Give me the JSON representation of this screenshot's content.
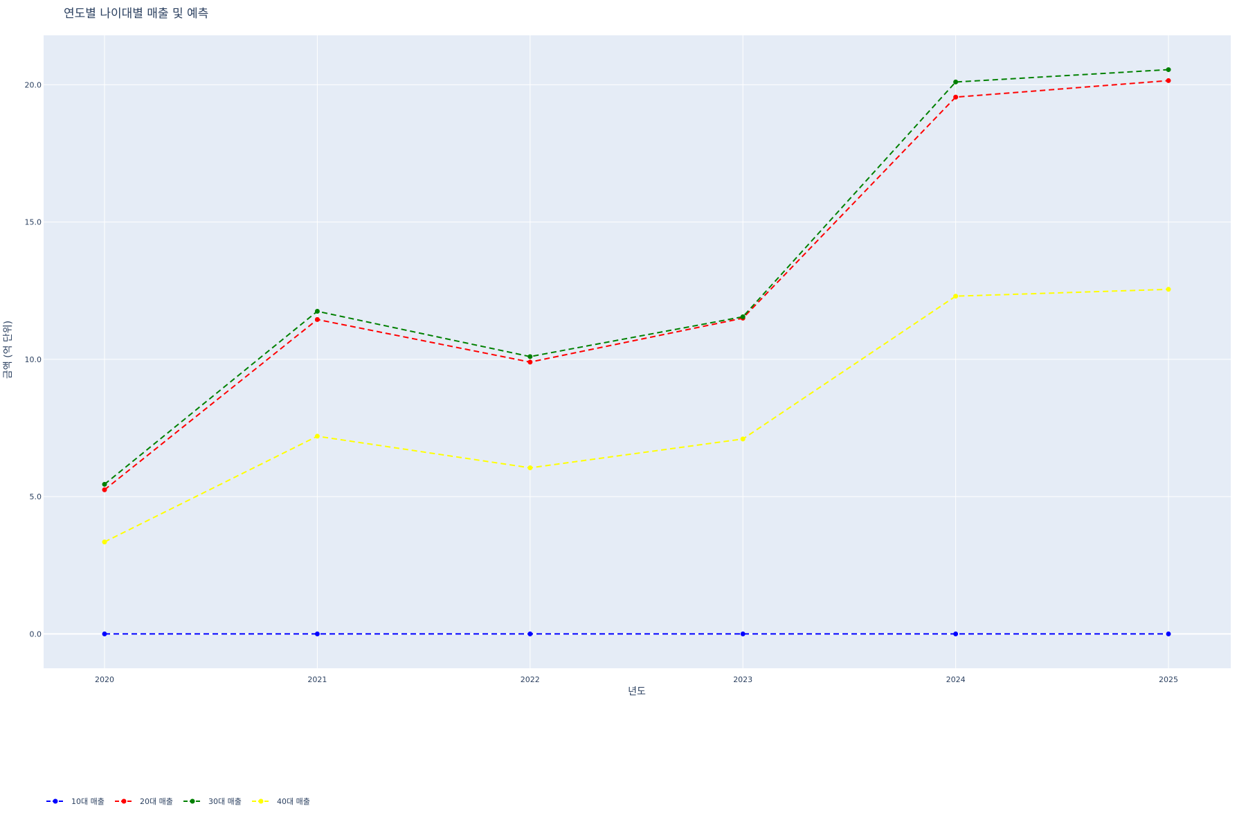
{
  "chart_data": {
    "type": "line",
    "title": "연도별 나이대별 매출 및 예측",
    "xlabel": "년도",
    "ylabel": "금액 (억 단위)",
    "x": [
      2020,
      2021,
      2022,
      2023,
      2024,
      2025
    ],
    "x_tick_labels": [
      "2020",
      "2021",
      "2022",
      "2023",
      "2024",
      "2025"
    ],
    "ylim": [
      -1.25,
      21.8
    ],
    "y_ticks": [
      0,
      5,
      10,
      15,
      20
    ],
    "y_tick_labels": [
      "0.0",
      "5.0",
      "10.0",
      "15.0",
      "20.0"
    ],
    "grid": true,
    "legend_placement": "bottom-left horizontal",
    "line_style": "dashed with markers",
    "background_color": "#e5ecf6",
    "grid_color": "#ffffff",
    "text_color": "#2a3f5f",
    "series": [
      {
        "name": "10대 매출",
        "color": "#0000ff",
        "values": [
          0,
          0,
          0,
          0,
          0,
          0
        ]
      },
      {
        "name": "20대 매출",
        "color": "#ff0000",
        "values": [
          5.25,
          11.45,
          9.9,
          11.5,
          19.55,
          20.15
        ]
      },
      {
        "name": "30대 매출",
        "color": "#008000",
        "values": [
          5.45,
          11.75,
          10.1,
          11.55,
          20.1,
          20.55
        ]
      },
      {
        "name": "40대 매출",
        "color": "#ffff00",
        "values": [
          3.35,
          7.2,
          6.05,
          7.1,
          12.3,
          12.55
        ]
      }
    ]
  }
}
